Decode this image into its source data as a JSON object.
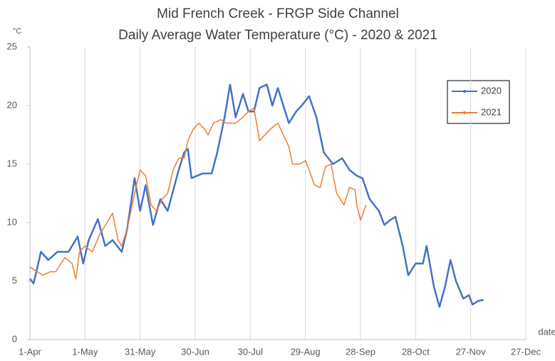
{
  "chart_data": {
    "type": "line",
    "title": "Mid French Creek - FRGP Side Channel",
    "subtitle": "Daily Average Water Temperature (°C) - 2020 & 2021",
    "y_label": "°C",
    "x_label": "date",
    "xlim": [
      0,
      270
    ],
    "xticks": [
      {
        "value": 0,
        "label": "1-Apr"
      },
      {
        "value": 30,
        "label": "1-May"
      },
      {
        "value": 60,
        "label": "31-May"
      },
      {
        "value": 90,
        "label": "30-Jun"
      },
      {
        "value": 120,
        "label": "30-Jul"
      },
      {
        "value": 150,
        "label": "29-Aug"
      },
      {
        "value": 180,
        "label": "28-Sep"
      },
      {
        "value": 210,
        "label": "28-Oct"
      },
      {
        "value": 240,
        "label": "27-Nov"
      },
      {
        "value": 270,
        "label": "27-Dec"
      }
    ],
    "ylim": [
      0,
      25
    ],
    "yticks": [
      0,
      5,
      10,
      15,
      20,
      25
    ],
    "grid": "x",
    "legend": "upper-right",
    "series": [
      {
        "name": "2020",
        "color": "#4472c4",
        "x": [
          0,
          2,
          6,
          10,
          15,
          21,
          26,
          29,
          32,
          37,
          41,
          45,
          50,
          53,
          57,
          60,
          63,
          67,
          71,
          75,
          81,
          84,
          86,
          88,
          94,
          99,
          102,
          106,
          109,
          112,
          116,
          119,
          122,
          125,
          129,
          132,
          135,
          138,
          141,
          145,
          148,
          152,
          156,
          160,
          165,
          170,
          174,
          178,
          181,
          185,
          190,
          193,
          196,
          199,
          203,
          206,
          210,
          214,
          216,
          220,
          223,
          226,
          229,
          232,
          236,
          239,
          241,
          244,
          247
        ],
        "values": [
          5.2,
          4.8,
          7.5,
          6.8,
          7.5,
          7.5,
          8.8,
          6.5,
          8.5,
          10.3,
          8.0,
          8.5,
          7.5,
          9.5,
          13.8,
          11.0,
          13.2,
          9.8,
          12.0,
          11.0,
          14.5,
          16.0,
          16.3,
          13.8,
          14.2,
          14.2,
          16.0,
          19.0,
          21.8,
          19.0,
          21.0,
          19.5,
          19.5,
          21.5,
          21.8,
          20.0,
          21.5,
          20.0,
          18.5,
          19.5,
          20.0,
          20.8,
          19.0,
          16.0,
          15.0,
          15.5,
          14.5,
          14.0,
          13.8,
          12.0,
          11.0,
          9.8,
          10.2,
          10.5,
          8.0,
          5.5,
          6.5,
          6.5,
          8.0,
          4.5,
          2.8,
          4.5,
          6.8,
          5.0,
          3.5,
          3.8,
          3.0,
          3.3,
          3.4
        ]
      },
      {
        "name": "2021",
        "color": "#ed7d31",
        "x": [
          0,
          4,
          7,
          11,
          14,
          19,
          23,
          25,
          27,
          30,
          34,
          38,
          42,
          45,
          48,
          50,
          53,
          57,
          60,
          63,
          66,
          69,
          72,
          75,
          78,
          81,
          84,
          86,
          89,
          92,
          95,
          97,
          100,
          104,
          107,
          112,
          116,
          119,
          122,
          125,
          128,
          131,
          135,
          138,
          141,
          143,
          147,
          150,
          152,
          155,
          158,
          161,
          164,
          167,
          169,
          171,
          174,
          177,
          178,
          180,
          183
        ],
        "values": [
          6.2,
          5.8,
          5.5,
          5.8,
          5.8,
          7.0,
          6.5,
          5.2,
          7.5,
          8.0,
          7.5,
          9.0,
          10.0,
          10.8,
          8.5,
          8.0,
          9.5,
          12.5,
          14.5,
          14.0,
          11.5,
          11.0,
          12.0,
          12.5,
          14.5,
          15.5,
          15.5,
          17.0,
          18.0,
          18.5,
          18.0,
          17.5,
          18.5,
          18.8,
          18.5,
          18.5,
          19.0,
          19.5,
          19.8,
          17.0,
          17.5,
          18.0,
          18.5,
          17.5,
          16.5,
          15.0,
          15.0,
          15.3,
          14.5,
          13.2,
          13.0,
          14.8,
          15.0,
          12.5,
          12.0,
          11.5,
          13.0,
          12.8,
          11.5,
          10.2,
          11.5
        ]
      }
    ]
  }
}
